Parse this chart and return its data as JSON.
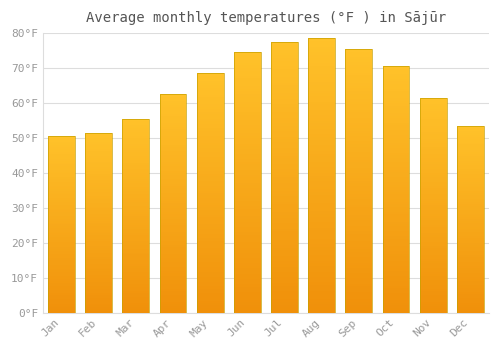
{
  "title": "Average monthly temperatures (°F ) in Sājūr",
  "months": [
    "Jan",
    "Feb",
    "Mar",
    "Apr",
    "May",
    "Jun",
    "Jul",
    "Aug",
    "Sep",
    "Oct",
    "Nov",
    "Dec"
  ],
  "values": [
    50.5,
    51.5,
    55.5,
    62.5,
    68.5,
    74.5,
    77.5,
    78.5,
    75.5,
    70.5,
    61.5,
    53.5
  ],
  "bar_color_light": "#FFC22A",
  "bar_color_dark": "#F0900A",
  "bar_edge_color": "#C8A000",
  "background_color": "#FFFFFF",
  "grid_color": "#DDDDDD",
  "text_color": "#999999",
  "title_color": "#555555",
  "ylim": [
    0,
    80
  ],
  "yticks": [
    0,
    10,
    20,
    30,
    40,
    50,
    60,
    70,
    80
  ],
  "title_fontsize": 10
}
